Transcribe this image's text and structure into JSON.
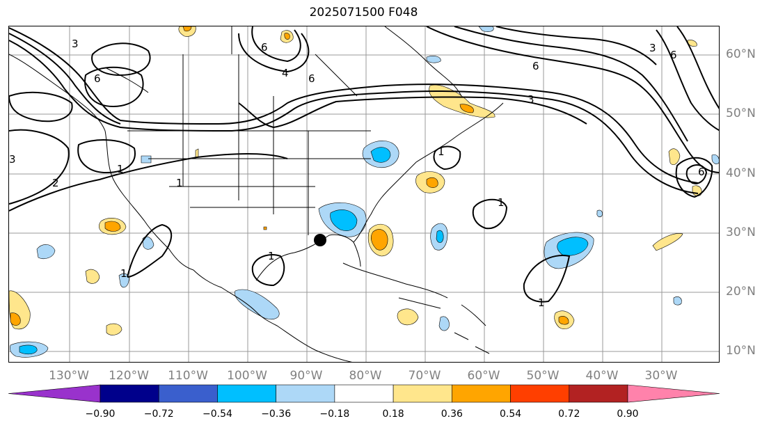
{
  "title": "2025071500 F048",
  "lat_labels": [
    "60°N",
    "50°N",
    "40°N",
    "30°N",
    "20°N",
    "10°N"
  ],
  "lon_labels": [
    "130°W",
    "120°W",
    "110°W",
    "100°W",
    "90°W",
    "80°W",
    "70°W",
    "60°W",
    "50°W",
    "40°W",
    "30°W"
  ],
  "contour_labels": [
    "3",
    "6",
    "1",
    "2",
    "1",
    "1",
    "6",
    "4",
    "6",
    "3",
    "6",
    "1",
    "1",
    "1",
    "1",
    "3",
    "6",
    "3",
    "6"
  ],
  "colorbar": {
    "ticks": [
      "−0.90",
      "−0.72",
      "−0.54",
      "−0.36",
      "−0.18",
      "0.18",
      "0.36",
      "0.54",
      "0.72",
      "0.90"
    ],
    "colors": [
      "#9932cc",
      "#00008b",
      "#3a5fcd",
      "#00bfff",
      "#add8f7",
      "#ffffff",
      "#ffe68c",
      "#ffa500",
      "#ff3f00",
      "#b22222",
      "#ff82ab"
    ]
  },
  "colors": {
    "negative_light": "#add8f7",
    "negative_mid": "#00bfff",
    "positive_light": "#ffe68c",
    "positive_mid": "#ffa500",
    "contour": "#000000",
    "gridline": "#999999"
  },
  "marker": "black-dot"
}
